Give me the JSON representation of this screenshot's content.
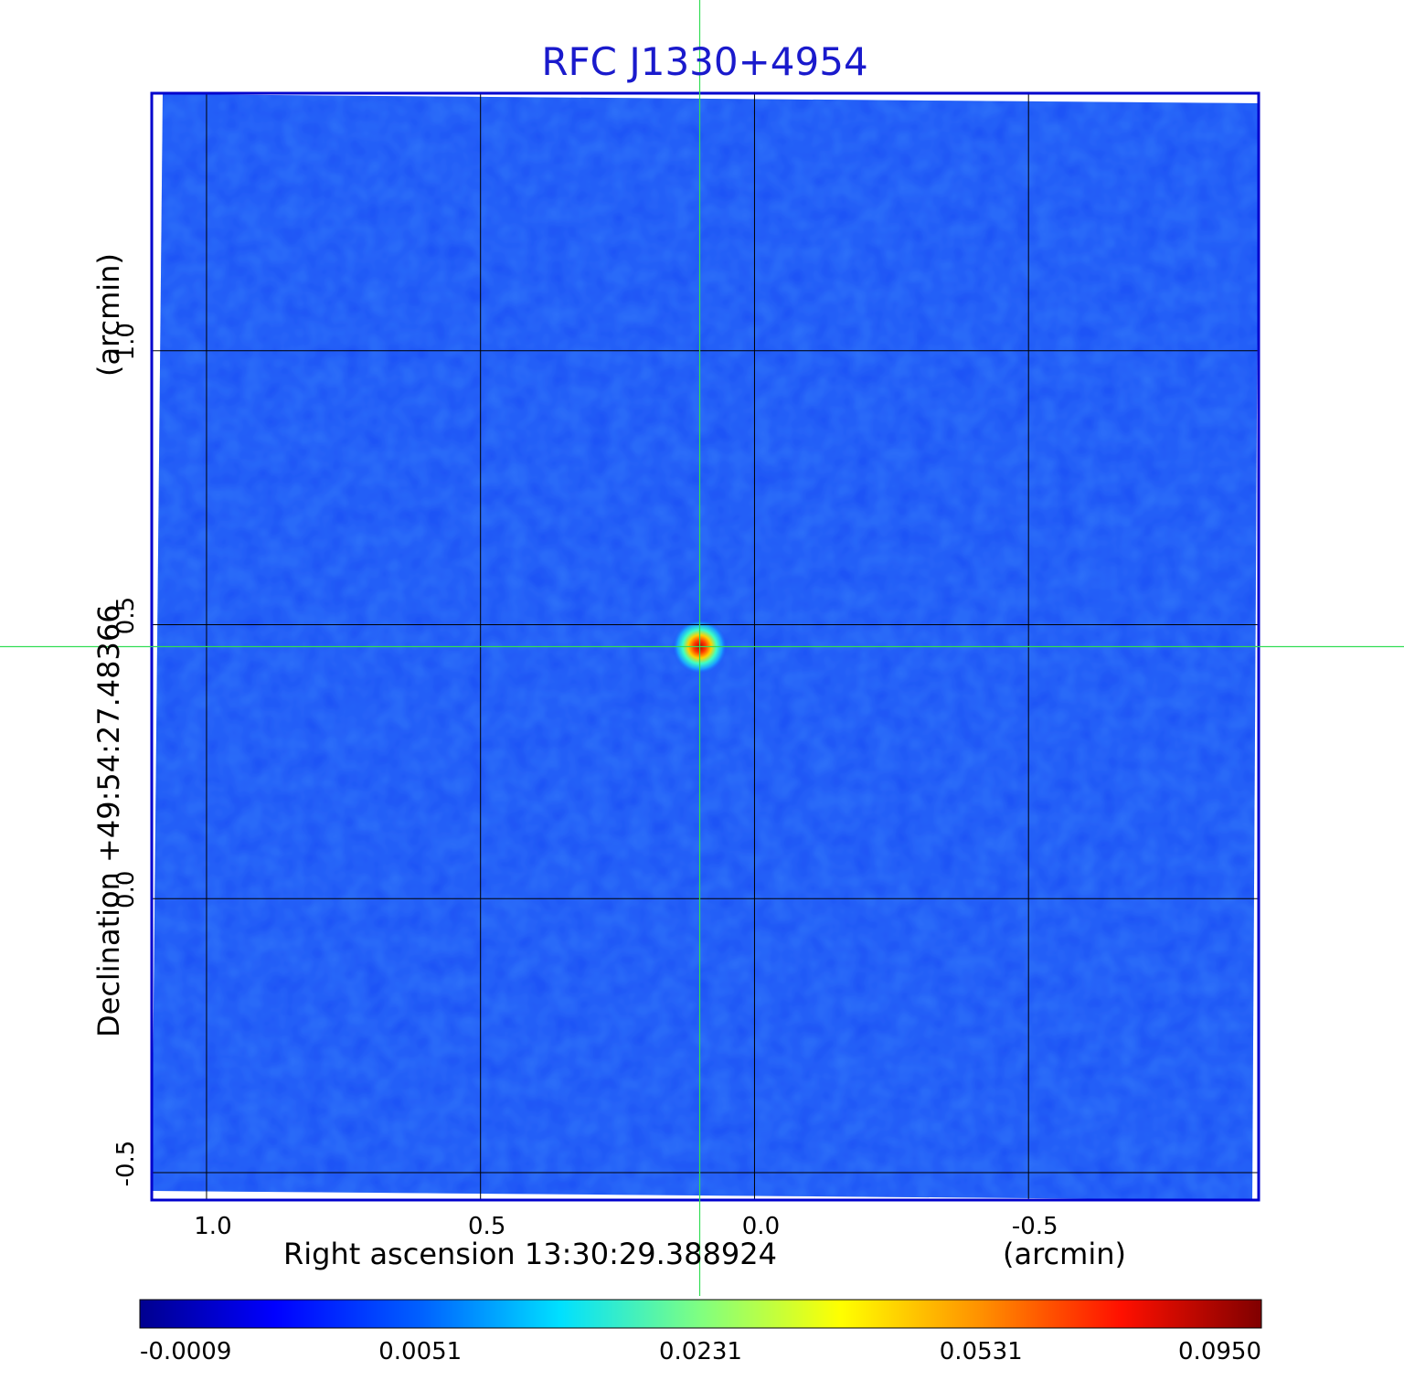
{
  "chart_data": {
    "type": "heatmap",
    "title": "RFC J1330+4954",
    "xlabel": "Right ascension  13:30:29.388924",
    "xunit": "(arcmin)",
    "ylabel": "Declination  +49:54:27.48366",
    "yunit": "(arcmin)",
    "x_ticks": [
      1.0,
      0.5,
      0.0,
      -0.5
    ],
    "y_ticks": [
      1.0,
      0.5,
      0.0,
      -0.5
    ],
    "x_tick_labels": [
      "1.0",
      "0.5",
      "0.0",
      "-0.5"
    ],
    "y_tick_labels": [
      "1.0",
      "0.5",
      "0.0",
      "-0.5"
    ],
    "xlim": [
      1.1,
      -0.92
    ],
    "ylim": [
      -0.55,
      1.47
    ],
    "x_inverted": true,
    "grid": true,
    "crosshair": {
      "x": 0.1,
      "y": 0.46
    },
    "source": {
      "x": 0.1,
      "y": 0.46,
      "peak": 0.095
    },
    "colorbar": {
      "position": "bottom",
      "colormap": "jet",
      "tick_labels": [
        "-0.0009",
        "0.0051",
        "0.0231",
        "0.0531",
        "0.0950"
      ],
      "range": [
        -0.0009,
        0.095
      ]
    },
    "colors": {
      "title": "#1a1acc",
      "frame": "#0000cc",
      "background_field": "#1a4ff5",
      "crosshair": "#33dd55",
      "grid": "#000000"
    }
  }
}
